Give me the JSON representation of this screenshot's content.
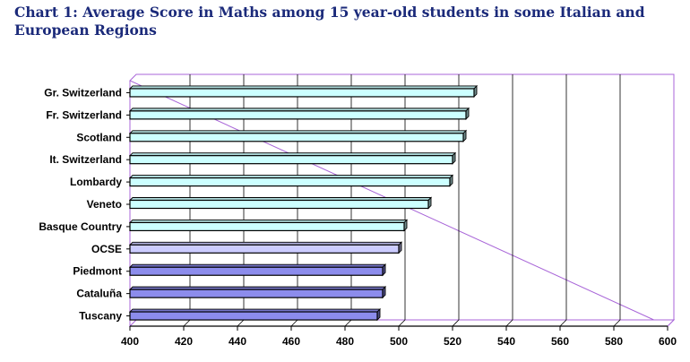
{
  "chart_data": {
    "type": "bar",
    "orientation": "horizontal",
    "title": "Chart 1: Average Score in Maths among 15 year-old students in some Italian and European Regions",
    "xlabel": "",
    "ylabel": "",
    "xlim": [
      400,
      600
    ],
    "ticks": [
      400,
      420,
      440,
      460,
      480,
      500,
      520,
      540,
      560,
      580,
      600
    ],
    "grid": true,
    "legend": "none",
    "categories": [
      "Gr. Switzerland",
      "Fr. Switzerland",
      "Scotland",
      "It. Switzerland",
      "Lombardy",
      "Veneto",
      "Basque Country",
      "OCSE",
      "Piedmont",
      "Cataluña",
      "Tuscany"
    ],
    "values": [
      528,
      525,
      524,
      520,
      519,
      511,
      502,
      500,
      494,
      494,
      492
    ],
    "bar_colors": [
      "#ccffff",
      "#ccffff",
      "#ccffff",
      "#ccffff",
      "#ccffff",
      "#ccffff",
      "#ccffff",
      "#ccccff",
      "#8c8cec",
      "#8c8cec",
      "#8c8cec"
    ],
    "colors": {
      "frame": "#a865d8",
      "gridline": "#000000",
      "title": "#1b2a7a"
    }
  }
}
